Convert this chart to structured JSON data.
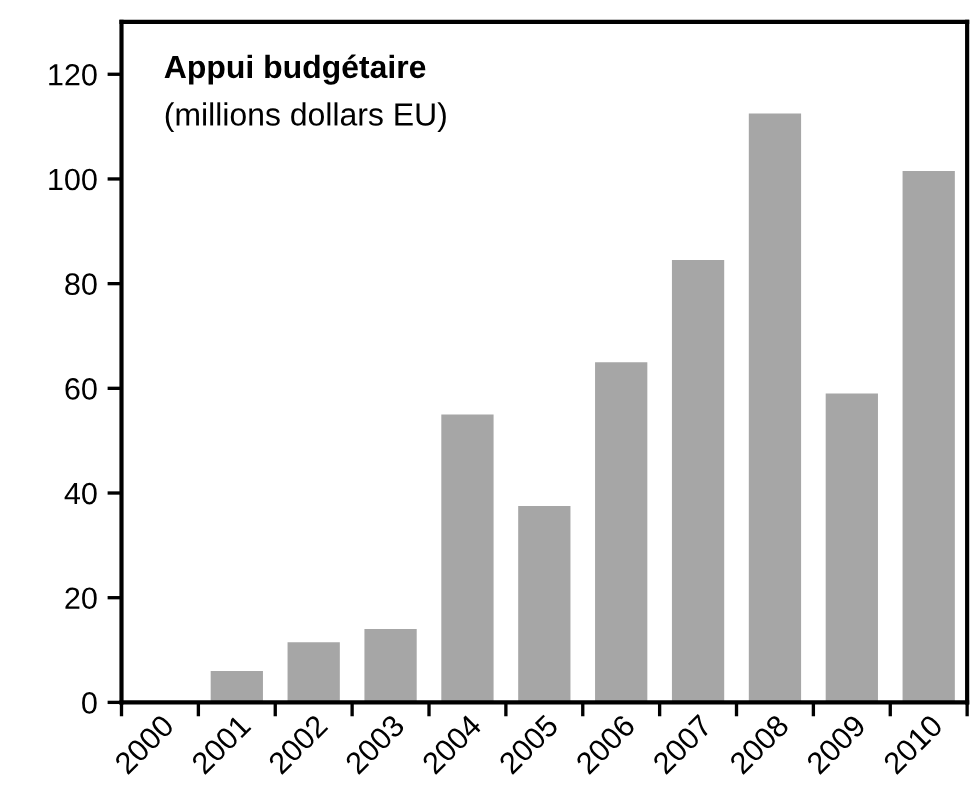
{
  "chart_data": {
    "type": "bar",
    "title": "Appui budgétaire",
    "subtitle": "(millions dollars EU)",
    "categories": [
      "2000",
      "2001",
      "2002",
      "2003",
      "2004",
      "2005",
      "2006",
      "2007",
      "2008",
      "2009",
      "2010"
    ],
    "values": [
      0,
      6,
      11.5,
      14,
      55,
      37.5,
      65,
      84.5,
      112.5,
      59,
      101.5
    ],
    "color": "#a6a6a6",
    "ylim": [
      0,
      130
    ],
    "yticks": [
      0,
      20,
      40,
      60,
      80,
      100,
      120
    ],
    "grid": false,
    "legend": false
  }
}
